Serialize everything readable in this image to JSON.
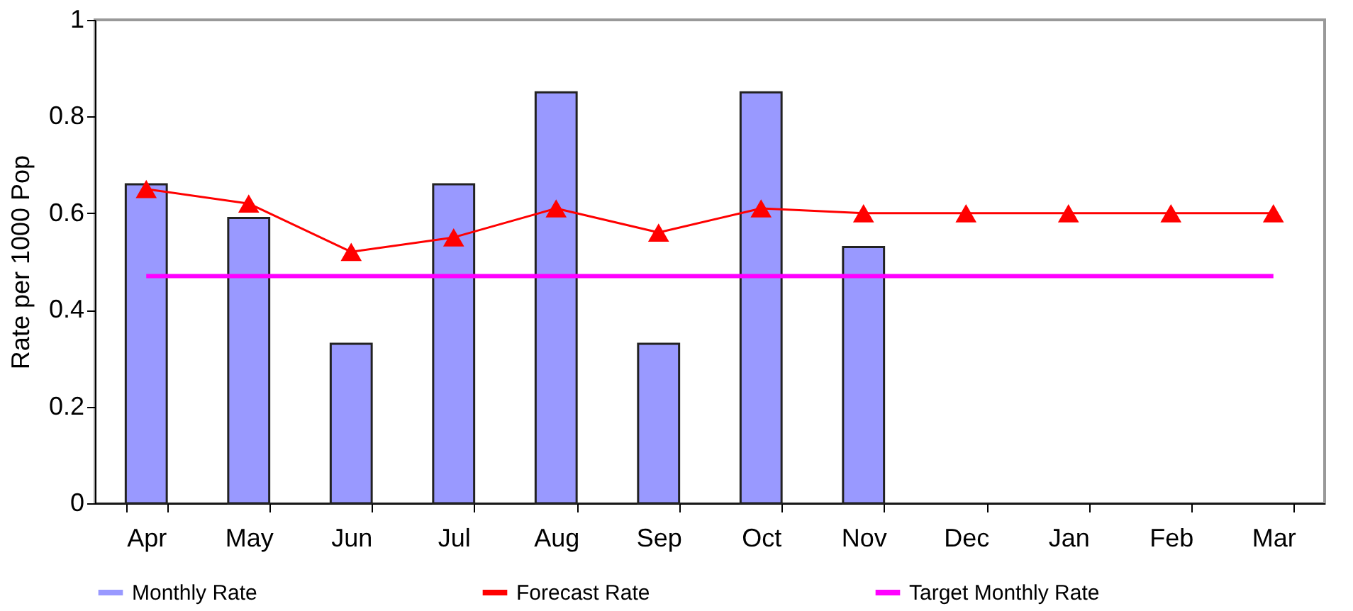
{
  "chart_data": {
    "type": "bar",
    "ylabel": "Rate per 1000 Pop",
    "categories": [
      "Apr",
      "May",
      "Jun",
      "Jul",
      "Aug",
      "Sep",
      "Oct",
      "Nov",
      "Dec",
      "Jan",
      "Feb",
      "Mar"
    ],
    "series": [
      {
        "name": "Monthly Rate",
        "color": "#9999ff",
        "values": [
          0.66,
          0.59,
          0.33,
          0.66,
          0.85,
          0.33,
          0.85,
          0.53,
          null,
          null,
          null,
          null
        ]
      },
      {
        "name": "Forecast Rate",
        "type": "line",
        "color": "#ff0000",
        "marker": "triangle",
        "values": [
          0.65,
          0.62,
          0.52,
          0.55,
          0.61,
          0.56,
          0.61,
          0.6,
          0.6,
          0.6,
          0.6,
          0.6
        ]
      },
      {
        "name": "Target Monthly Rate",
        "type": "line",
        "color": "#ff00ff",
        "marker": "none",
        "values": [
          0.47,
          0.47,
          0.47,
          0.47,
          0.47,
          0.47,
          0.47,
          0.47,
          0.47,
          0.47,
          0.47,
          0.47
        ]
      }
    ],
    "ylim": [
      0,
      1
    ],
    "yticks": [
      0,
      0.2,
      0.4,
      0.6,
      0.8,
      1
    ],
    "grid": false,
    "legend": "bottom"
  }
}
